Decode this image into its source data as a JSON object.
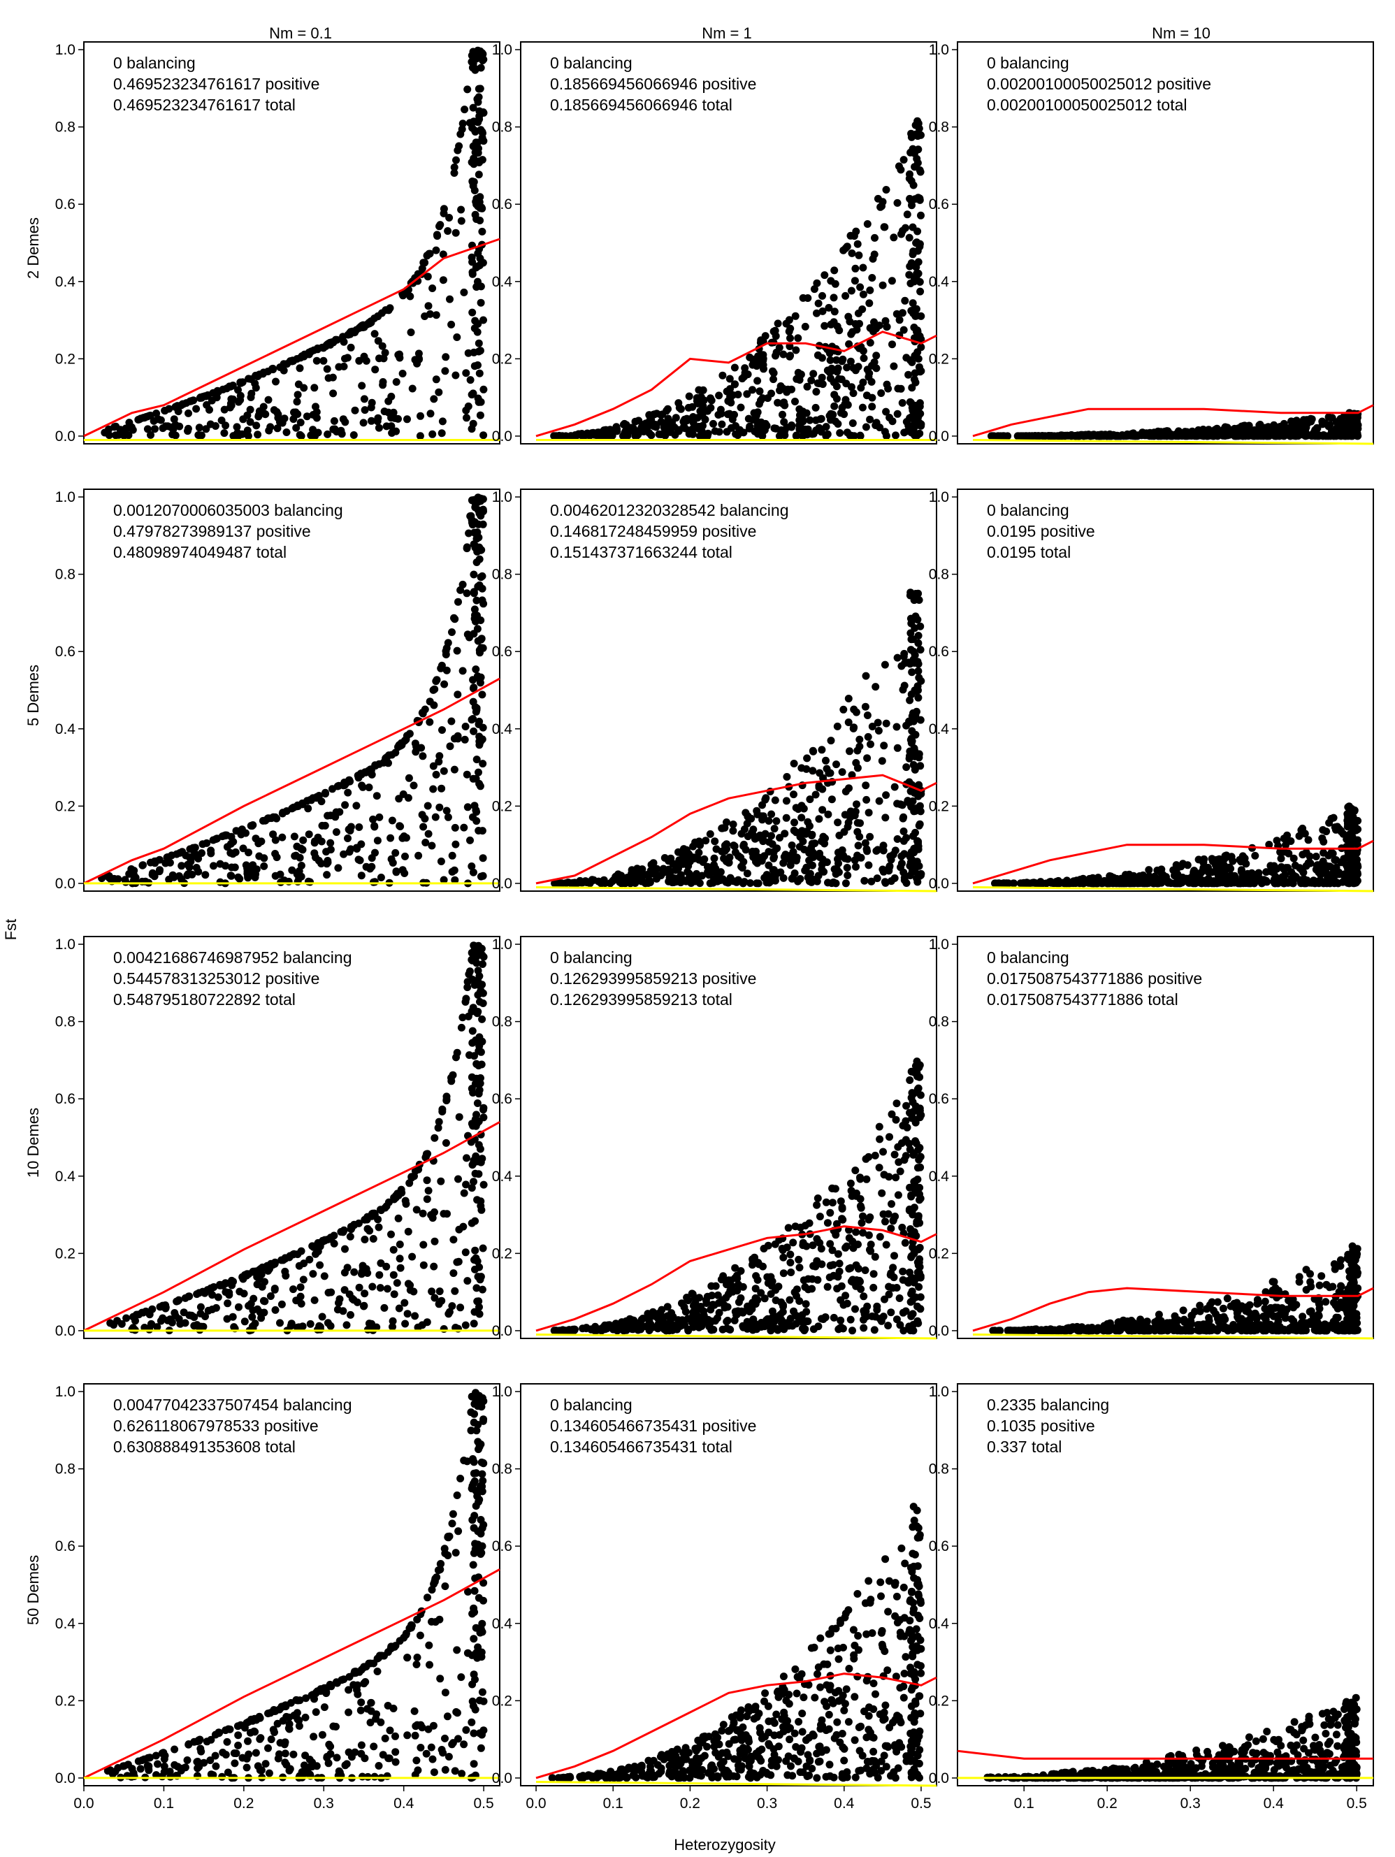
{
  "figure": {
    "x_axis_label": "Heterozygosity",
    "y_axis_label": "Fst",
    "column_titles": [
      "Nm = 0.1",
      "Nm = 1",
      "Nm = 10"
    ],
    "row_labels": [
      "2 Demes",
      "5 Demes",
      "10 Demes",
      "50 Demes"
    ],
    "colors": {
      "points": "#000000",
      "upper_quantile_line": "#ff0000",
      "lower_quantile_line": "#ffff00"
    }
  },
  "chart_data": [
    {
      "type": "scatter",
      "row": 0,
      "col": 0,
      "title": "Nm = 0.1",
      "ylabel": "2 Demes",
      "xlim": [
        0,
        0.52
      ],
      "ylim": [
        -0.02,
        1.02
      ],
      "annotations": [
        "0  balancing",
        "0.469523234761617  positive",
        "0.469523234761617  total"
      ],
      "stats": {
        "balancing": 0,
        "positive": 0.469523234761617,
        "total": 0.469523234761617
      },
      "series": [
        {
          "kind": "points",
          "upper_envelope_max": 1.0
        },
        {
          "kind": "red_line",
          "x": [
            0,
            0.06,
            0.1,
            0.2,
            0.3,
            0.4,
            0.45,
            0.52
          ],
          "y": [
            0,
            0.06,
            0.08,
            0.18,
            0.28,
            0.38,
            0.46,
            0.51
          ]
        },
        {
          "kind": "yellow_line",
          "x": [
            0,
            0.52
          ],
          "y": [
            -0.01,
            -0.01
          ]
        }
      ]
    },
    {
      "type": "scatter",
      "row": 0,
      "col": 1,
      "title": "Nm = 1",
      "ylabel": "2 Demes",
      "xlim": [
        -0.02,
        0.52
      ],
      "ylim": [
        -0.02,
        1.02
      ],
      "annotations": [
        "0  balancing",
        "0.185669456066946  positive",
        "0.185669456066946  total"
      ],
      "stats": {
        "balancing": 0,
        "positive": 0.185669456066946,
        "total": 0.185669456066946
      },
      "series": [
        {
          "kind": "points",
          "upper_envelope_max": 0.82
        },
        {
          "kind": "red_line",
          "x": [
            0,
            0.05,
            0.1,
            0.15,
            0.2,
            0.25,
            0.3,
            0.35,
            0.4,
            0.45,
            0.5,
            0.52
          ],
          "y": [
            0,
            0.03,
            0.07,
            0.12,
            0.2,
            0.19,
            0.24,
            0.24,
            0.22,
            0.27,
            0.24,
            0.26
          ]
        },
        {
          "kind": "yellow_line",
          "x": [
            0,
            0.52
          ],
          "y": [
            -0.01,
            -0.01
          ]
        }
      ]
    },
    {
      "type": "scatter",
      "row": 0,
      "col": 2,
      "title": "Nm = 10",
      "ylabel": "2 Demes",
      "xlim": [
        -0.02,
        0.52
      ],
      "ylim": [
        -0.02,
        1.02
      ],
      "annotations": [
        "0  balancing",
        "0.00200100050025012  positive",
        "0.00200100050025012  total"
      ],
      "stats": {
        "balancing": 0,
        "positive": 0.00200100050025012,
        "total": 0.00200100050025012
      },
      "series": [
        {
          "kind": "points",
          "upper_envelope_max": 0.06
        },
        {
          "kind": "red_line",
          "x": [
            0,
            0.05,
            0.1,
            0.15,
            0.2,
            0.3,
            0.4,
            0.5,
            0.52
          ],
          "y": [
            0,
            0.03,
            0.05,
            0.07,
            0.07,
            0.07,
            0.06,
            0.06,
            0.08
          ]
        },
        {
          "kind": "yellow_line",
          "x": [
            0,
            0.52
          ],
          "y": [
            -0.01,
            -0.02
          ]
        }
      ]
    },
    {
      "type": "scatter",
      "row": 1,
      "col": 0,
      "title": "Nm = 0.1",
      "ylabel": "5 Demes",
      "xlim": [
        0,
        0.52
      ],
      "ylim": [
        -0.02,
        1.02
      ],
      "annotations": [
        "0.0012070006035003  balancing",
        "0.47978273989137  positive",
        "0.48098974049487  total"
      ],
      "stats": {
        "balancing": 0.0012070006035003,
        "positive": 0.47978273989137,
        "total": 0.48098974049487
      },
      "series": [
        {
          "kind": "points",
          "upper_envelope_max": 1.0
        },
        {
          "kind": "red_line",
          "x": [
            0,
            0.06,
            0.1,
            0.2,
            0.3,
            0.4,
            0.45,
            0.52
          ],
          "y": [
            0,
            0.06,
            0.09,
            0.2,
            0.3,
            0.4,
            0.45,
            0.53
          ]
        },
        {
          "kind": "yellow_line",
          "x": [
            0,
            0.52
          ],
          "y": [
            0,
            0.0
          ]
        }
      ]
    },
    {
      "type": "scatter",
      "row": 1,
      "col": 1,
      "title": "Nm = 1",
      "ylabel": "5 Demes",
      "xlim": [
        -0.02,
        0.52
      ],
      "ylim": [
        -0.02,
        1.02
      ],
      "annotations": [
        "0.00462012320328542  balancing",
        "0.146817248459959  positive",
        "0.151437371663244  total"
      ],
      "stats": {
        "balancing": 0.00462012320328542,
        "positive": 0.146817248459959,
        "total": 0.151437371663244
      },
      "series": [
        {
          "kind": "points",
          "upper_envelope_max": 0.76
        },
        {
          "kind": "red_line",
          "x": [
            0,
            0.05,
            0.1,
            0.15,
            0.2,
            0.25,
            0.3,
            0.35,
            0.4,
            0.45,
            0.5,
            0.52
          ],
          "y": [
            0,
            0.02,
            0.07,
            0.12,
            0.18,
            0.22,
            0.24,
            0.26,
            0.27,
            0.28,
            0.24,
            0.26
          ]
        },
        {
          "kind": "yellow_line",
          "x": [
            0,
            0.52
          ],
          "y": [
            -0.01,
            -0.02
          ]
        }
      ]
    },
    {
      "type": "scatter",
      "row": 1,
      "col": 2,
      "title": "Nm = 10",
      "ylabel": "5 Demes",
      "xlim": [
        -0.02,
        0.52
      ],
      "ylim": [
        -0.02,
        1.02
      ],
      "annotations": [
        "0  balancing",
        "0.0195  positive",
        "0.0195  total"
      ],
      "stats": {
        "balancing": 0,
        "positive": 0.0195,
        "total": 0.0195
      },
      "series": [
        {
          "kind": "points",
          "upper_envelope_max": 0.2
        },
        {
          "kind": "red_line",
          "x": [
            0,
            0.05,
            0.1,
            0.15,
            0.2,
            0.3,
            0.4,
            0.5,
            0.52
          ],
          "y": [
            0,
            0.03,
            0.06,
            0.08,
            0.1,
            0.1,
            0.09,
            0.09,
            0.11
          ]
        },
        {
          "kind": "yellow_line",
          "x": [
            0,
            0.52
          ],
          "y": [
            -0.01,
            -0.02
          ]
        }
      ]
    },
    {
      "type": "scatter",
      "row": 2,
      "col": 0,
      "title": "Nm = 0.1",
      "ylabel": "10 Demes",
      "xlim": [
        0,
        0.52
      ],
      "ylim": [
        -0.02,
        1.02
      ],
      "annotations": [
        "0.00421686746987952  balancing",
        "0.544578313253012  positive",
        "0.548795180722892  total"
      ],
      "stats": {
        "balancing": 0.00421686746987952,
        "positive": 0.544578313253012,
        "total": 0.548795180722892
      },
      "series": [
        {
          "kind": "points",
          "upper_envelope_max": 1.0
        },
        {
          "kind": "red_line",
          "x": [
            0,
            0.06,
            0.1,
            0.2,
            0.3,
            0.4,
            0.45,
            0.52
          ],
          "y": [
            0,
            0.06,
            0.1,
            0.21,
            0.31,
            0.41,
            0.46,
            0.54
          ]
        },
        {
          "kind": "yellow_line",
          "x": [
            0,
            0.52
          ],
          "y": [
            0,
            0.0
          ]
        }
      ]
    },
    {
      "type": "scatter",
      "row": 2,
      "col": 1,
      "title": "Nm = 1",
      "ylabel": "10 Demes",
      "xlim": [
        -0.02,
        0.52
      ],
      "ylim": [
        -0.02,
        1.02
      ],
      "annotations": [
        "0  balancing",
        "0.126293995859213  positive",
        "0.126293995859213  total"
      ],
      "stats": {
        "balancing": 0,
        "positive": 0.126293995859213,
        "total": 0.126293995859213
      },
      "series": [
        {
          "kind": "points",
          "upper_envelope_max": 0.7
        },
        {
          "kind": "red_line",
          "x": [
            0,
            0.05,
            0.1,
            0.15,
            0.2,
            0.25,
            0.3,
            0.35,
            0.4,
            0.45,
            0.5,
            0.52
          ],
          "y": [
            0,
            0.03,
            0.07,
            0.12,
            0.18,
            0.21,
            0.24,
            0.25,
            0.27,
            0.26,
            0.23,
            0.25
          ]
        },
        {
          "kind": "yellow_line",
          "x": [
            0,
            0.52
          ],
          "y": [
            -0.01,
            -0.02
          ]
        }
      ]
    },
    {
      "type": "scatter",
      "row": 2,
      "col": 2,
      "title": "Nm = 10",
      "ylabel": "10 Demes",
      "xlim": [
        -0.02,
        0.52
      ],
      "ylim": [
        -0.02,
        1.02
      ],
      "annotations": [
        "0  balancing",
        "0.0175087543771886  positive",
        "0.0175087543771886  total"
      ],
      "stats": {
        "balancing": 0,
        "positive": 0.0175087543771886,
        "total": 0.0175087543771886
      },
      "series": [
        {
          "kind": "points",
          "upper_envelope_max": 0.22
        },
        {
          "kind": "red_line",
          "x": [
            0,
            0.05,
            0.1,
            0.15,
            0.2,
            0.3,
            0.4,
            0.5,
            0.52
          ],
          "y": [
            0,
            0.03,
            0.07,
            0.1,
            0.11,
            0.1,
            0.09,
            0.09,
            0.11
          ]
        },
        {
          "kind": "yellow_line",
          "x": [
            0,
            0.52
          ],
          "y": [
            -0.01,
            -0.02
          ]
        }
      ]
    },
    {
      "type": "scatter",
      "row": 3,
      "col": 0,
      "title": "Nm = 0.1",
      "ylabel": "50 Demes",
      "xlim": [
        0,
        0.52
      ],
      "ylim": [
        -0.02,
        1.02
      ],
      "annotations": [
        "0.00477042337507454  balancing",
        "0.626118067978533  positive",
        "0.630888491353608  total"
      ],
      "stats": {
        "balancing": 0.00477042337507454,
        "positive": 0.626118067978533,
        "total": 0.630888491353608
      },
      "series": [
        {
          "kind": "points",
          "upper_envelope_max": 1.0
        },
        {
          "kind": "red_line",
          "x": [
            0,
            0.06,
            0.1,
            0.2,
            0.3,
            0.4,
            0.45,
            0.52
          ],
          "y": [
            0,
            0.06,
            0.1,
            0.21,
            0.31,
            0.41,
            0.46,
            0.54
          ]
        },
        {
          "kind": "yellow_line",
          "x": [
            0,
            0.52
          ],
          "y": [
            0,
            0.0
          ]
        }
      ]
    },
    {
      "type": "scatter",
      "row": 3,
      "col": 1,
      "title": "Nm = 1",
      "ylabel": "50 Demes",
      "xlim": [
        -0.02,
        0.52
      ],
      "ylim": [
        -0.02,
        1.02
      ],
      "annotations": [
        "0  balancing",
        "0.134605466735431  positive",
        "0.134605466735431  total"
      ],
      "stats": {
        "balancing": 0,
        "positive": 0.134605466735431,
        "total": 0.134605466735431
      },
      "series": [
        {
          "kind": "points",
          "upper_envelope_max": 0.71
        },
        {
          "kind": "red_line",
          "x": [
            0,
            0.05,
            0.1,
            0.15,
            0.2,
            0.25,
            0.3,
            0.35,
            0.4,
            0.45,
            0.5,
            0.52
          ],
          "y": [
            0,
            0.03,
            0.07,
            0.12,
            0.17,
            0.22,
            0.24,
            0.25,
            0.27,
            0.26,
            0.24,
            0.26
          ]
        },
        {
          "kind": "yellow_line",
          "x": [
            0,
            0.52
          ],
          "y": [
            -0.01,
            -0.02
          ]
        }
      ]
    },
    {
      "type": "scatter",
      "row": 3,
      "col": 2,
      "title": "Nm = 10",
      "ylabel": "50 Demes",
      "xlim": [
        0.02,
        0.52
      ],
      "ylim": [
        -0.02,
        1.02
      ],
      "annotations": [
        "0.2335  balancing",
        "0.1035  positive",
        "0.337  total"
      ],
      "stats": {
        "balancing": 0.2335,
        "positive": 0.1035,
        "total": 0.337
      },
      "series": [
        {
          "kind": "points",
          "upper_envelope_max": 0.21
        },
        {
          "kind": "red_line",
          "x": [
            0.02,
            0.1,
            0.2,
            0.3,
            0.4,
            0.5,
            0.52
          ],
          "y": [
            0.07,
            0.05,
            0.05,
            0.05,
            0.05,
            0.05,
            0.05
          ]
        },
        {
          "kind": "yellow_line",
          "x": [
            0.02,
            0.52
          ],
          "y": [
            0.0,
            0.0
          ]
        }
      ]
    }
  ]
}
